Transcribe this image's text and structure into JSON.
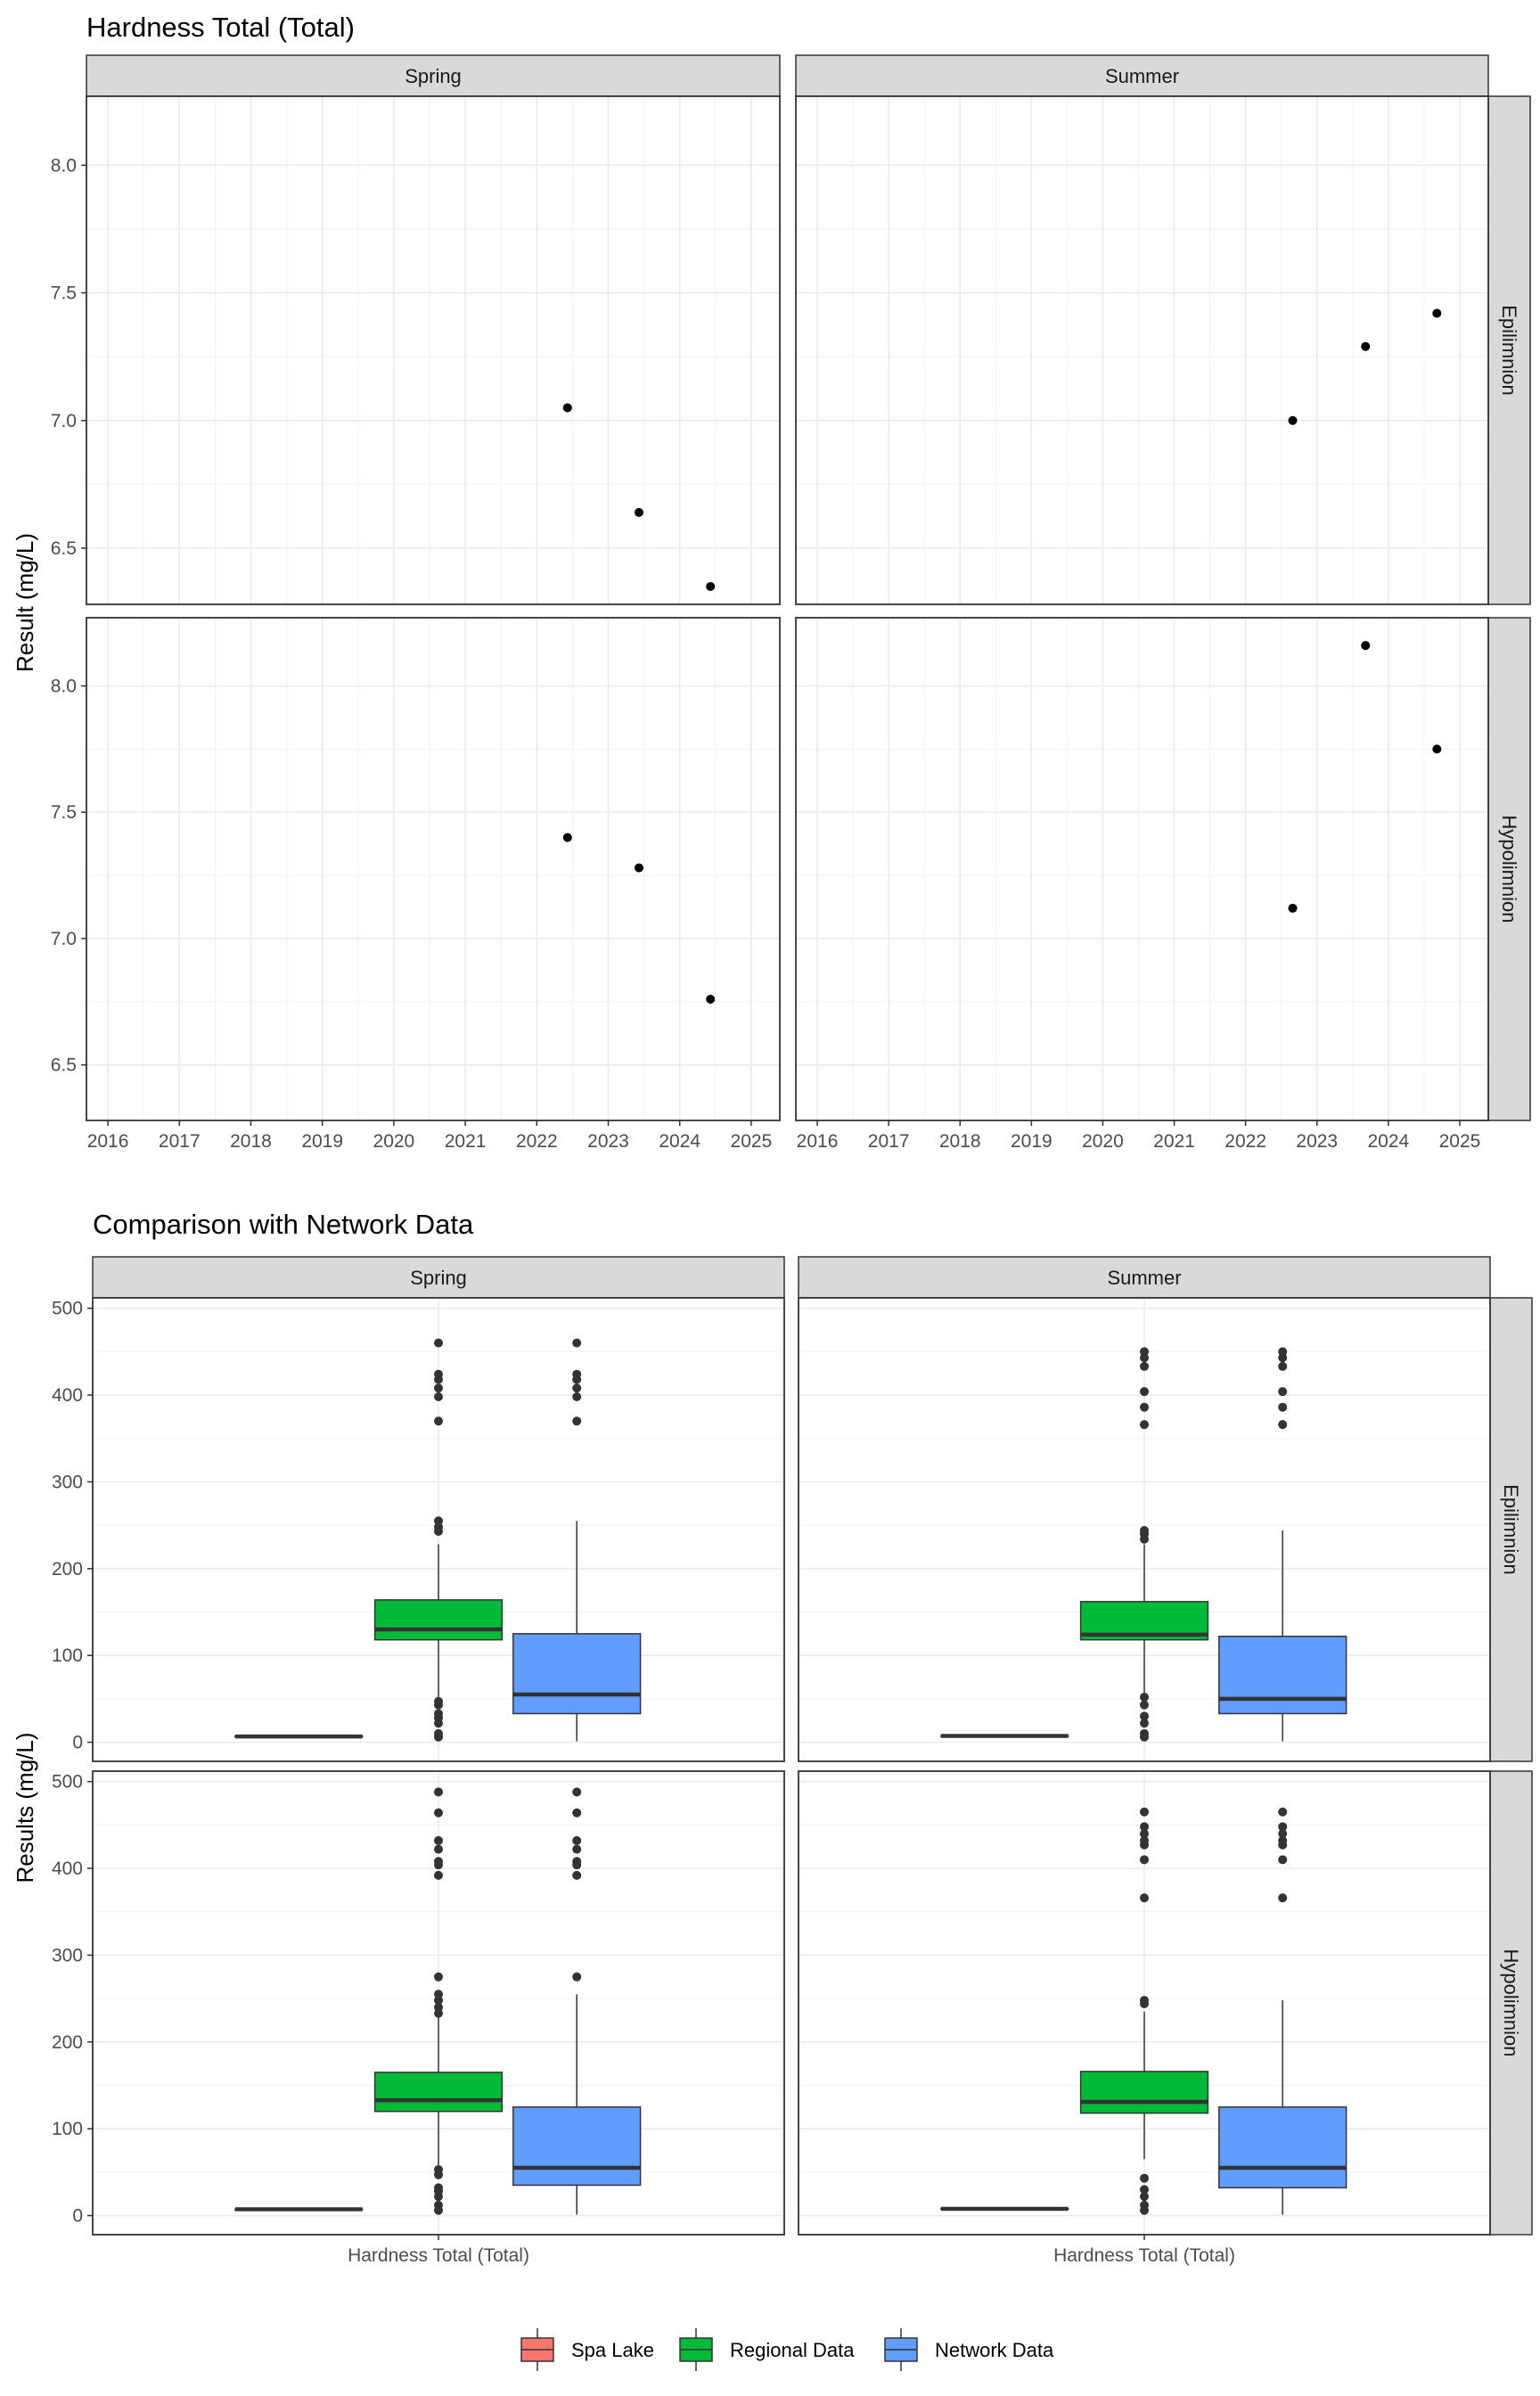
{
  "chart_data": [
    {
      "type": "scatter",
      "title": "Hardness Total (Total)",
      "ylabel": "Result (mg/L)",
      "xlabel": "",
      "grid": true,
      "columns": [
        "Spring",
        "Summer"
      ],
      "rows": [
        "Epilimnion",
        "Hypolimnion"
      ],
      "xlim": [
        2015.7,
        2025.4
      ],
      "x_ticks": [
        2016,
        2017,
        2018,
        2019,
        2020,
        2021,
        2022,
        2023,
        2024,
        2025
      ],
      "x_tick_labels": [
        "2016",
        "2017",
        "2018",
        "2019",
        "2020",
        "2021",
        "2022",
        "2023",
        "2024",
        "2025"
      ],
      "rows_ylim": {
        "Epilimnion": [
          6.28,
          8.27
        ],
        "Hypolimnion": [
          6.28,
          8.27
        ]
      },
      "y_ticks": [
        6.5,
        7.0,
        7.5,
        8.0
      ],
      "y_tick_labels": [
        "6.5",
        "7.0",
        "7.5",
        "8.0"
      ],
      "panels": [
        {
          "column": "Spring",
          "row": "Epilimnion",
          "points": [
            {
              "x": 2022.43,
              "y": 7.05
            },
            {
              "x": 2023.43,
              "y": 6.64
            },
            {
              "x": 2024.43,
              "y": 6.35
            }
          ]
        },
        {
          "column": "Summer",
          "row": "Epilimnion",
          "points": [
            {
              "x": 2022.66,
              "y": 7.0
            },
            {
              "x": 2023.68,
              "y": 7.29
            },
            {
              "x": 2024.68,
              "y": 7.42
            }
          ]
        },
        {
          "column": "Spring",
          "row": "Hypolimnion",
          "points": [
            {
              "x": 2022.43,
              "y": 7.4
            },
            {
              "x": 2023.43,
              "y": 7.28
            },
            {
              "x": 2024.43,
              "y": 6.76
            }
          ]
        },
        {
          "column": "Summer",
          "row": "Hypolimnion",
          "points": [
            {
              "x": 2022.66,
              "y": 7.12
            },
            {
              "x": 2023.68,
              "y": 8.16
            },
            {
              "x": 2024.68,
              "y": 7.75
            }
          ]
        }
      ]
    },
    {
      "type": "box",
      "title": "Comparison with Network Data",
      "ylabel": "Results (mg/L)",
      "x_category": "Hardness Total (Total)",
      "grid": true,
      "columns": [
        "Spring",
        "Summer"
      ],
      "rows": [
        "Epilimnion",
        "Hypolimnion"
      ],
      "ylim": [
        -22,
        512
      ],
      "y_ticks": [
        0,
        100,
        200,
        300,
        400,
        500
      ],
      "y_tick_labels": [
        "0",
        "100",
        "200",
        "300",
        "400",
        "500"
      ],
      "series": [
        {
          "name": "Spa Lake",
          "color": "#F8766D"
        },
        {
          "name": "Regional Data",
          "color": "#00BA38"
        },
        {
          "name": "Network Data",
          "color": "#619CFF"
        }
      ],
      "legend_position": "bottom",
      "panels": [
        {
          "column": "Spring",
          "row": "Epilimnion",
          "boxes": [
            {
              "series": "Spa Lake",
              "min": 6.35,
              "q1": 6.64,
              "median": 6.64,
              "q3": 7.05,
              "max": 7.05,
              "outliers": []
            },
            {
              "series": "Regional Data",
              "min": 50,
              "q1": 118,
              "median": 130,
              "q3": 164,
              "max": 228,
              "outliers": [
                460,
                424,
                418,
                408,
                398,
                370,
                255,
                248,
                243,
                47,
                43,
                33,
                28,
                22,
                10,
                6
              ]
            },
            {
              "series": "Network Data",
              "min": 1,
              "q1": 33,
              "median": 55,
              "q3": 125,
              "max": 255,
              "outliers": [
                460,
                424,
                418,
                408,
                398,
                370
              ]
            }
          ]
        },
        {
          "column": "Summer",
          "row": "Epilimnion",
          "boxes": [
            {
              "series": "Spa Lake",
              "min": 7.0,
              "q1": 7.29,
              "median": 7.29,
              "q3": 7.42,
              "max": 7.42,
              "outliers": []
            },
            {
              "series": "Regional Data",
              "min": 56,
              "q1": 118,
              "median": 124,
              "q3": 162,
              "max": 228,
              "outliers": [
                450,
                443,
                433,
                404,
                386,
                366,
                244,
                240,
                234,
                52,
                43,
                30,
                22,
                10,
                6
              ]
            },
            {
              "series": "Network Data",
              "min": 1,
              "q1": 33,
              "median": 50,
              "q3": 122,
              "max": 244,
              "outliers": [
                450,
                443,
                433,
                404,
                386,
                366
              ]
            }
          ]
        },
        {
          "column": "Spring",
          "row": "Hypolimnion",
          "boxes": [
            {
              "series": "Spa Lake",
              "min": 6.76,
              "q1": 7.28,
              "median": 7.28,
              "q3": 7.4,
              "max": 7.4,
              "outliers": []
            },
            {
              "series": "Regional Data",
              "min": 58,
              "q1": 120,
              "median": 133,
              "q3": 165,
              "max": 233,
              "outliers": [
                488,
                464,
                432,
                422,
                408,
                404,
                392,
                275,
                255,
                248,
                240,
                233,
                53,
                47,
                32,
                28,
                22,
                12,
                6
              ]
            },
            {
              "series": "Network Data",
              "min": 1,
              "q1": 35,
              "median": 55,
              "q3": 125,
              "max": 255,
              "outliers": [
                488,
                464,
                432,
                422,
                408,
                404,
                392,
                275
              ]
            }
          ]
        },
        {
          "column": "Summer",
          "row": "Hypolimnion",
          "boxes": [
            {
              "series": "Spa Lake",
              "min": 7.12,
              "q1": 7.75,
              "median": 7.75,
              "q3": 8.16,
              "max": 8.16,
              "outliers": []
            },
            {
              "series": "Regional Data",
              "min": 65,
              "q1": 118,
              "median": 131,
              "q3": 166,
              "max": 235,
              "outliers": [
                465,
                448,
                440,
                432,
                427,
                410,
                366,
                248,
                244,
                43,
                30,
                22,
                12,
                6
              ]
            },
            {
              "series": "Network Data",
              "min": 1,
              "q1": 32,
              "median": 55,
              "q3": 125,
              "max": 248,
              "outliers": [
                465,
                448,
                440,
                432,
                427,
                410,
                366
              ]
            }
          ]
        }
      ]
    }
  ]
}
